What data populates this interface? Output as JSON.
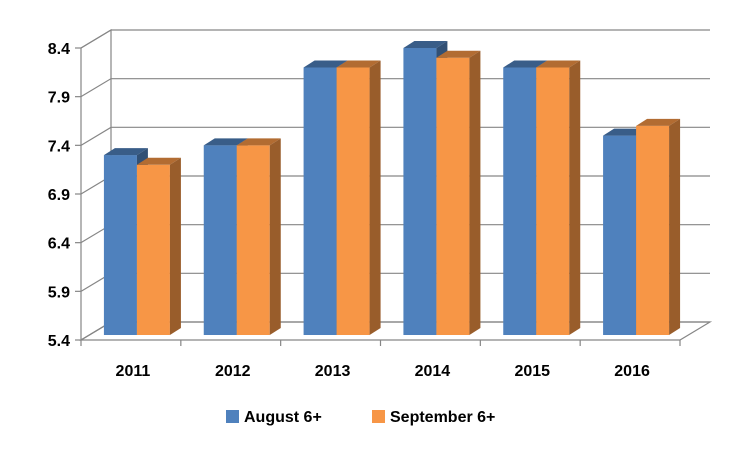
{
  "chart_data": {
    "type": "bar",
    "title": "",
    "xlabel": "",
    "ylabel": "",
    "categories": [
      "2011",
      "2012",
      "2013",
      "2014",
      "2015",
      "2016"
    ],
    "series": [
      {
        "name": "August 6+",
        "color": "#4f81bd",
        "values": [
          7.3,
          7.4,
          8.2,
          8.4,
          8.2,
          7.5
        ]
      },
      {
        "name": "September 6+",
        "color": "#f79646",
        "values": [
          7.2,
          7.4,
          8.2,
          8.3,
          8.2,
          7.6
        ]
      }
    ],
    "ylim": [
      5.4,
      8.4
    ],
    "yticks": [
      "5.4",
      "5.9",
      "6.4",
      "6.9",
      "7.4",
      "7.9",
      "8.4"
    ],
    "grid": true,
    "legend_position": "bottom",
    "style": "3d-clustered-column"
  }
}
